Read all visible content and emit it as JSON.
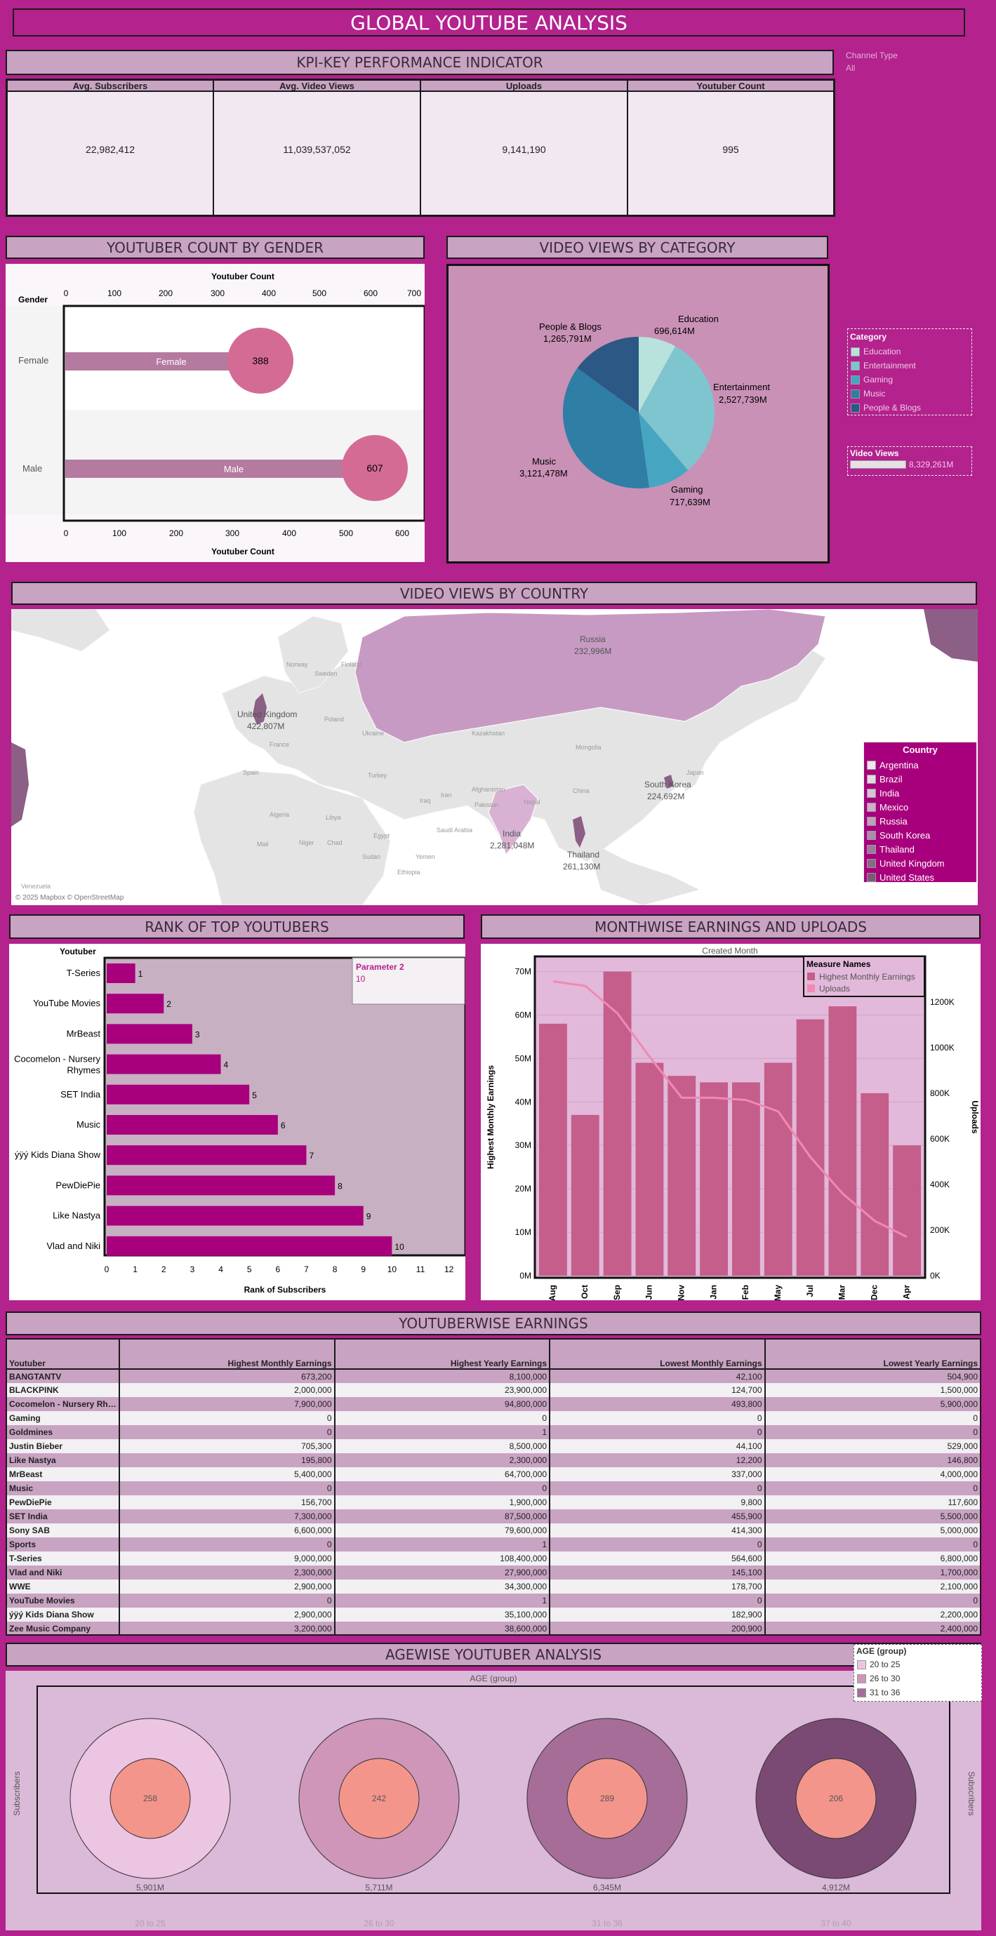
{
  "title": "GLOBAL YOUTUBE ANALYSIS",
  "filter": {
    "label": "Channel Type",
    "value": "All"
  },
  "kpi": {
    "header": "KPI-KEY PERFORMANCE INDICATOR",
    "items": [
      {
        "label": "Avg. Subscribers",
        "value": "22,982,412"
      },
      {
        "label": "Avg. Video Views",
        "value": "11,039,537,052"
      },
      {
        "label": "Uploads",
        "value": "9,141,190"
      },
      {
        "label": "Youtuber Count",
        "value": "995"
      }
    ]
  },
  "gender": {
    "header": "YOUTUBER COUNT BY GENDER",
    "axis_title": "Youtuber Count",
    "row_header": "Gender",
    "ticks": [
      "0",
      "100",
      "200",
      "300",
      "400",
      "500",
      "600",
      "700"
    ],
    "bottom_ticks": [
      "0",
      "100",
      "200",
      "300",
      "400",
      "500",
      "600"
    ],
    "rows": [
      {
        "label": "Female",
        "bar_label": "Female",
        "value": "388"
      },
      {
        "label": "Male",
        "bar_label": "Male",
        "value": "607"
      }
    ]
  },
  "category": {
    "header": "VIDEO VIEWS BY CATEGORY",
    "labels": [
      {
        "name": "Education",
        "value": "696,614M"
      },
      {
        "name": "Entertainment",
        "value": "2,527,739M"
      },
      {
        "name": "Gaming",
        "value": "717,639M"
      },
      {
        "name": "Music",
        "value": "3,121,478M"
      },
      {
        "name": "People & Blogs",
        "value": "1,265,791M"
      }
    ],
    "legend_title": "Category",
    "legend": [
      "Education",
      "Entertainment",
      "Gaming",
      "Music",
      "People & Blogs"
    ],
    "colors": [
      "#b8e3dc",
      "#7fc5cf",
      "#46a6c1",
      "#2f7ea6",
      "#2b5885"
    ],
    "views_title": "Video Views",
    "views_value": "8,329,261M"
  },
  "country": {
    "header": "VIDEO VIEWS BY COUNTRY",
    "labels": [
      {
        "name": "Russia",
        "value": "232,996M"
      },
      {
        "name": "United Kingdom",
        "value": "422,807M"
      },
      {
        "name": "South Korea",
        "value": "224,692M"
      },
      {
        "name": "India",
        "value": "2,281,048M"
      },
      {
        "name": "Thailand",
        "value": "261,130M"
      }
    ],
    "map_places": [
      "Norway",
      "Sweden",
      "Finland",
      "Poland",
      "Ukraine",
      "Kazakhstan",
      "Mongolia",
      "China",
      "Iran",
      "Turkey",
      "Iraq",
      "Egypt",
      "Libya",
      "Algeria",
      "Mali",
      "Niger",
      "Chad",
      "Sudan",
      "Ethiopia",
      "Yemen",
      "Saudi Arabia",
      "Pakistan",
      "Afghanistan",
      "France",
      "Spain",
      "Japan",
      "Nepal",
      "Venezuela"
    ],
    "attribution": "© 2025 Mapbox © OpenStreetMap",
    "legend_title": "Country",
    "legend": [
      "Argentina",
      "Brazil",
      "India",
      "Mexico",
      "Russia",
      "South Korea",
      "Thailand",
      "United Kingdom",
      "United States"
    ]
  },
  "rank": {
    "header": "RANK OF TOP YOUTUBERS",
    "col_header": "Youtuber",
    "param_title": "Parameter 2",
    "param_value": "10",
    "x_title": "Rank of Subscribers",
    "x_ticks": [
      "0",
      "1",
      "2",
      "3",
      "4",
      "5",
      "6",
      "7",
      "8",
      "9",
      "10",
      "11",
      "12"
    ],
    "rows": [
      {
        "name": "T-Series",
        "rank": 1
      },
      {
        "name": "YouTube Movies",
        "rank": 2
      },
      {
        "name": "MrBeast",
        "rank": 3
      },
      {
        "name": "Cocomelon - Nursery Rhymes",
        "rank": 4
      },
      {
        "name": "SET India",
        "rank": 5
      },
      {
        "name": "Music",
        "rank": 6
      },
      {
        "name": "ýÿý Kids Diana Show",
        "rank": 7
      },
      {
        "name": "PewDiePie",
        "rank": 8
      },
      {
        "name": "Like Nastya",
        "rank": 9
      },
      {
        "name": "Vlad and Niki",
        "rank": 10
      }
    ]
  },
  "monthly": {
    "header": "MONTHWISE EARNINGS AND UPLOADS",
    "top_title": "Created Month",
    "y_left_title": "Highest Monthly Earnings",
    "y_right_title": "Uploads",
    "left_ticks": [
      "0M",
      "10M",
      "20M",
      "30M",
      "40M",
      "50M",
      "60M",
      "70M"
    ],
    "right_ticks": [
      "0K",
      "200K",
      "400K",
      "600K",
      "800K",
      "1000K",
      "1200K"
    ],
    "legend_title": "Measure Names",
    "legend": [
      "Highest Monthly Earnings",
      "Uploads"
    ]
  },
  "chart_data": {
    "type": "bar",
    "categories": [
      "Aug",
      "Oct",
      "Sep",
      "Jun",
      "Nov",
      "Jan",
      "Feb",
      "May",
      "Jul",
      "Mar",
      "Dec",
      "Apr"
    ],
    "series": [
      {
        "name": "Highest Monthly Earnings",
        "values": [
          58000000,
          37000000,
          70000000,
          49000000,
          46000000,
          44500000,
          44500000,
          49000000,
          59000000,
          62000000,
          42000000,
          30000000
        ]
      },
      {
        "name": "Uploads",
        "values": [
          1290000,
          1270000,
          1150000,
          960000,
          780000,
          780000,
          770000,
          720000,
          520000,
          360000,
          240000,
          170000
        ]
      }
    ],
    "ylim": [
      0,
      73000000
    ],
    "y2lim": [
      0,
      1390000
    ]
  },
  "earnings": {
    "header": "YOUTUBERWISE EARNINGS",
    "columns": [
      "Youtuber",
      "Highest Monthly Earnings",
      "Highest Yearly Earnings",
      "Lowest Monthly Earnings",
      "Lowest Yearly Earnings"
    ],
    "rows": [
      [
        "BANGTANTV",
        "673,200",
        "8,100,000",
        "42,100",
        "504,900"
      ],
      [
        "BLACKPINK",
        "2,000,000",
        "23,900,000",
        "124,700",
        "1,500,000"
      ],
      [
        "Cocomelon - Nursery Rhy..",
        "7,900,000",
        "94,800,000",
        "493,800",
        "5,900,000"
      ],
      [
        "Gaming",
        "0",
        "0",
        "0",
        "0"
      ],
      [
        "Goldmines",
        "0",
        "1",
        "0",
        "0"
      ],
      [
        "Justin Bieber",
        "705,300",
        "8,500,000",
        "44,100",
        "529,000"
      ],
      [
        "Like Nastya",
        "195,800",
        "2,300,000",
        "12,200",
        "146,800"
      ],
      [
        "MrBeast",
        "5,400,000",
        "64,700,000",
        "337,000",
        "4,000,000"
      ],
      [
        "Music",
        "0",
        "0",
        "0",
        "0"
      ],
      [
        "PewDiePie",
        "156,700",
        "1,900,000",
        "9,800",
        "117,600"
      ],
      [
        "SET India",
        "7,300,000",
        "87,500,000",
        "455,900",
        "5,500,000"
      ],
      [
        "Sony SAB",
        "6,600,000",
        "79,600,000",
        "414,300",
        "5,000,000"
      ],
      [
        "Sports",
        "0",
        "1",
        "0",
        "0"
      ],
      [
        "T-Series",
        "9,000,000",
        "108,400,000",
        "564,600",
        "6,800,000"
      ],
      [
        "Vlad and Niki",
        "2,300,000",
        "27,900,000",
        "145,100",
        "1,700,000"
      ],
      [
        "WWE",
        "2,900,000",
        "34,300,000",
        "178,700",
        "2,100,000"
      ],
      [
        "YouTube Movies",
        "0",
        "1",
        "0",
        "0"
      ],
      [
        "ýÿý Kids Diana Show",
        "2,900,000",
        "35,100,000",
        "182,900",
        "2,200,000"
      ],
      [
        "Zee Music Company",
        "3,200,000",
        "38,600,000",
        "200,900",
        "2,400,000"
      ]
    ]
  },
  "age": {
    "header": "AGEWISE YOUTUBER ANALYSIS",
    "top_title": "AGE (group)",
    "y_title": "Subscribers",
    "legend_title": "AGE (group)",
    "legend": [
      "20 to 25",
      "26 to 30",
      "31 to 36"
    ],
    "groups": [
      {
        "label": "20 to 25",
        "count": "258",
        "subs": "5,901M",
        "color": "#ecc5e2"
      },
      {
        "label": "26 to 30",
        "count": "242",
        "subs": "5,711M",
        "color": "#cf96ba"
      },
      {
        "label": "31 to 36",
        "count": "289",
        "subs": "6,345M",
        "color": "#a56d98"
      },
      {
        "label": "37 to 40",
        "count": "206",
        "subs": "4,912M",
        "color": "#7a4a74"
      }
    ]
  }
}
